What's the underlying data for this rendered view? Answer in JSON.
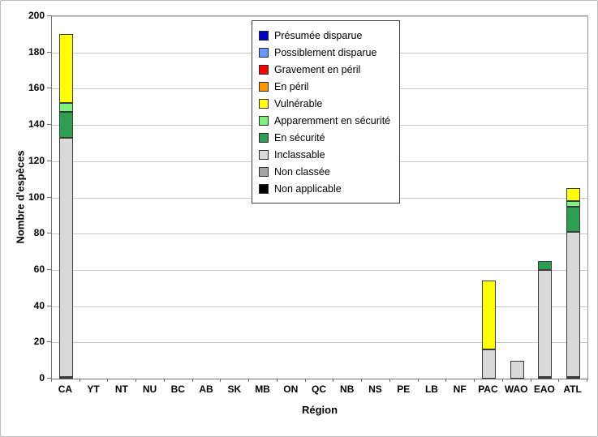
{
  "chart_data": {
    "type": "bar",
    "stacked": true,
    "title": "",
    "xlabel": "Région",
    "ylabel": "Nombre d'espèces",
    "ylim": [
      0,
      200
    ],
    "yticks": [
      0,
      20,
      40,
      60,
      80,
      100,
      120,
      140,
      160,
      180,
      200
    ],
    "grid": "horizontal gridlines at every 20 units",
    "legend_position": "inside plot, top center",
    "categories": [
      "CA",
      "YT",
      "NT",
      "NU",
      "BC",
      "AB",
      "SK",
      "MB",
      "ON",
      "QC",
      "NB",
      "NS",
      "PE",
      "LB",
      "NF",
      "PAC",
      "WAO",
      "EAO",
      "ATL"
    ],
    "stack_note": "segments stacked bottom-to-top in reverse legend order (Non applicable at bottom, Présumée disparue at top)",
    "series": [
      {
        "name": "Présumée disparue",
        "color": "#0000cc",
        "values": [
          0,
          0,
          0,
          0,
          0,
          0,
          0,
          0,
          0,
          0,
          0,
          0,
          0,
          0,
          0,
          0,
          0,
          0,
          0
        ]
      },
      {
        "name": "Possiblement disparue",
        "color": "#6699ff",
        "values": [
          0,
          0,
          0,
          0,
          0,
          0,
          0,
          0,
          0,
          0,
          0,
          0,
          0,
          0,
          0,
          0,
          0,
          0,
          0
        ]
      },
      {
        "name": "Gravement en péril",
        "color": "#ff0000",
        "values": [
          0,
          0,
          0,
          0,
          0,
          0,
          0,
          0,
          0,
          0,
          0,
          0,
          0,
          0,
          0,
          0,
          0,
          0,
          0
        ]
      },
      {
        "name": "En péril",
        "color": "#ff9900",
        "values": [
          0,
          0,
          0,
          0,
          0,
          0,
          0,
          0,
          0,
          0,
          0,
          0,
          0,
          0,
          0,
          0,
          0,
          0,
          0
        ]
      },
      {
        "name": "Vulnérable",
        "color": "#ffff00",
        "values": [
          38,
          0,
          0,
          0,
          0,
          0,
          0,
          0,
          0,
          0,
          0,
          0,
          0,
          0,
          0,
          38,
          0,
          0,
          7
        ]
      },
      {
        "name": "Apparemment en sécurité",
        "color": "#7df07d",
        "values": [
          5,
          0,
          0,
          0,
          0,
          0,
          0,
          0,
          0,
          0,
          0,
          0,
          0,
          0,
          0,
          0,
          0,
          0,
          3
        ]
      },
      {
        "name": "En sécurité",
        "color": "#2e9e50",
        "values": [
          14,
          0,
          0,
          0,
          0,
          0,
          0,
          0,
          0,
          0,
          0,
          0,
          0,
          0,
          0,
          0,
          0,
          5,
          14
        ]
      },
      {
        "name": "Inclassable",
        "color": "#d9d9d9",
        "values": [
          132,
          0,
          0,
          0,
          0,
          0,
          0,
          0,
          0,
          0,
          0,
          0,
          0,
          0,
          0,
          16,
          10,
          59,
          80
        ]
      },
      {
        "name": "Non classée",
        "color": "#a6a6a6",
        "values": [
          1,
          0,
          0,
          0,
          0,
          0,
          0,
          0,
          0,
          0,
          0,
          0,
          0,
          0,
          0,
          0,
          0,
          1,
          1
        ]
      },
      {
        "name": "Non applicable",
        "color": "#000000",
        "values": [
          0,
          0,
          0,
          0,
          0,
          0,
          0,
          0,
          0,
          0,
          0,
          0,
          0,
          0,
          0,
          0,
          0,
          0,
          0
        ]
      }
    ]
  }
}
